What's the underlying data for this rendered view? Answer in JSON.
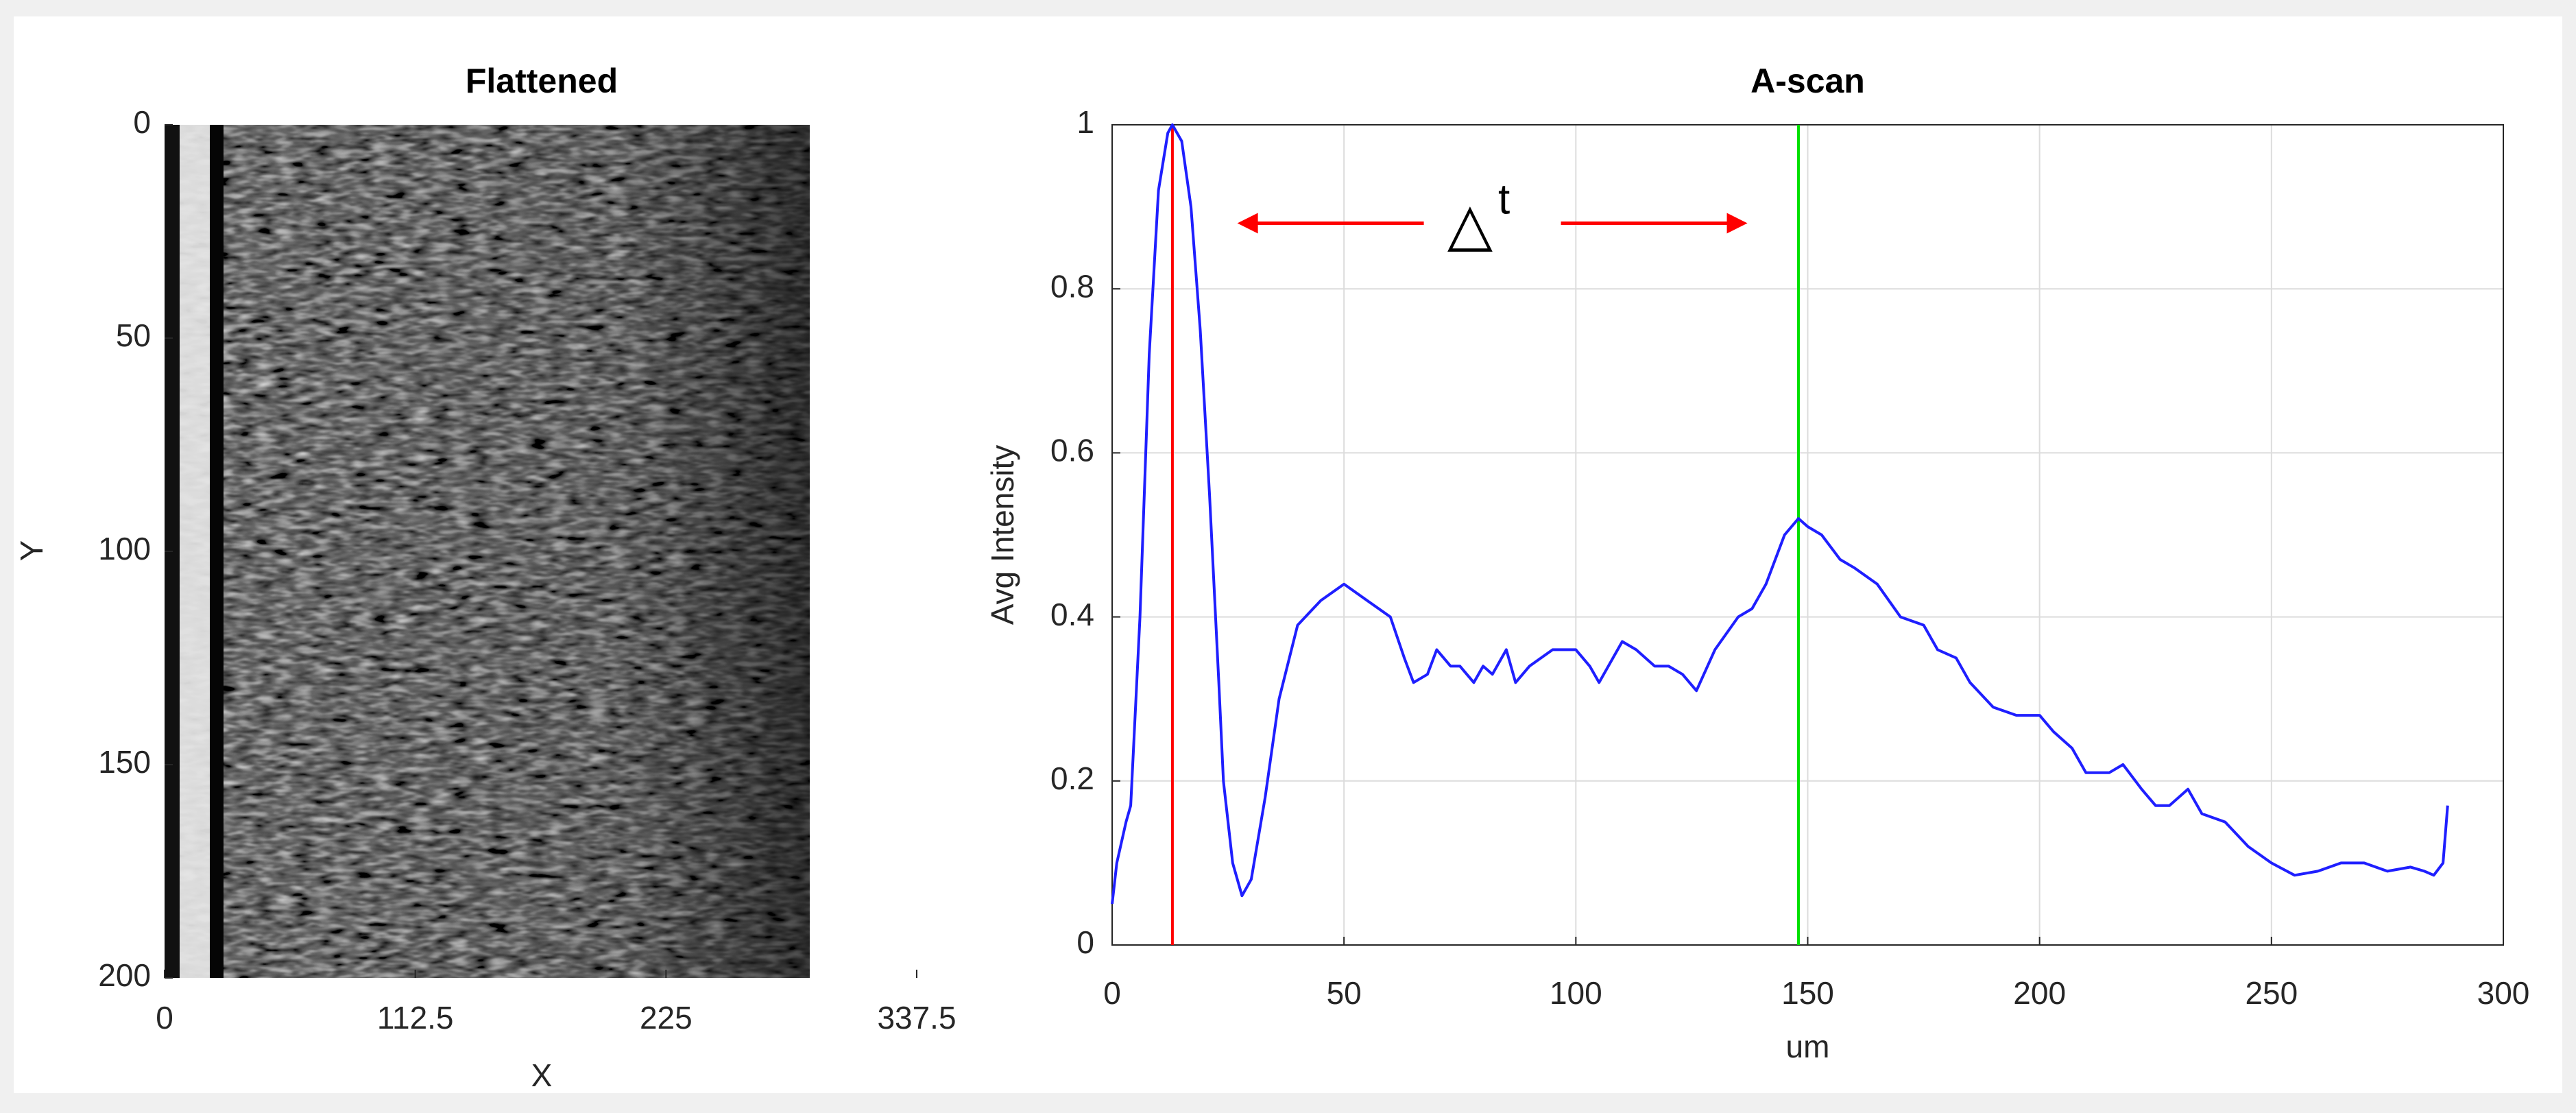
{
  "chart_data": [
    {
      "type": "image",
      "title": "Flattened",
      "xlabel": "X",
      "ylabel": "Y",
      "xlim": [
        0,
        337.5
      ],
      "xticks": [
        0,
        112.5,
        225,
        337.5
      ],
      "ylim": [
        0,
        200
      ],
      "yticks": [
        0,
        50,
        100,
        150,
        200
      ],
      "y_reversed": true
    },
    {
      "type": "line",
      "title": "A-scan",
      "xlabel": "um",
      "ylabel": "Avg Intensity",
      "xlim": [
        0,
        300
      ],
      "xticks": [
        0,
        50,
        100,
        150,
        200,
        250,
        300
      ],
      "ylim": [
        0,
        1
      ],
      "yticks": [
        0,
        0.2,
        0.4,
        0.6,
        0.8,
        1
      ],
      "grid": true,
      "series": [
        {
          "color": "#1f1fff",
          "x": [
            0,
            1,
            3,
            4,
            6,
            8,
            10,
            12,
            13,
            15,
            17,
            19,
            21,
            23,
            24,
            26,
            28,
            30,
            33,
            36,
            40,
            45,
            50,
            55,
            60,
            63,
            65,
            68,
            70,
            73,
            75,
            78,
            80,
            82,
            85,
            87,
            90,
            95,
            100,
            103,
            105,
            110,
            113,
            117,
            120,
            123,
            126,
            130,
            135,
            138,
            141,
            145,
            148,
            150,
            153,
            157,
            160,
            165,
            170,
            175,
            178,
            182,
            185,
            190,
            195,
            200,
            203,
            207,
            210,
            215,
            218,
            222,
            225,
            228,
            232,
            235,
            240,
            245,
            250,
            255,
            260,
            265,
            270,
            275,
            280,
            283,
            285,
            287,
            288
          ],
          "values": [
            0.05,
            0.1,
            0.15,
            0.17,
            0.4,
            0.72,
            0.92,
            0.99,
            1.0,
            0.98,
            0.9,
            0.75,
            0.55,
            0.32,
            0.2,
            0.1,
            0.06,
            0.08,
            0.18,
            0.3,
            0.39,
            0.42,
            0.44,
            0.42,
            0.4,
            0.35,
            0.32,
            0.33,
            0.36,
            0.34,
            0.34,
            0.32,
            0.34,
            0.33,
            0.36,
            0.32,
            0.34,
            0.36,
            0.36,
            0.34,
            0.32,
            0.37,
            0.36,
            0.34,
            0.34,
            0.33,
            0.31,
            0.36,
            0.4,
            0.41,
            0.44,
            0.5,
            0.52,
            0.51,
            0.5,
            0.47,
            0.46,
            0.44,
            0.4,
            0.39,
            0.36,
            0.35,
            0.32,
            0.29,
            0.28,
            0.28,
            0.26,
            0.24,
            0.21,
            0.21,
            0.22,
            0.19,
            0.17,
            0.17,
            0.19,
            0.16,
            0.15,
            0.12,
            0.1,
            0.085,
            0.09,
            0.1,
            0.1,
            0.09,
            0.095,
            0.09,
            0.085,
            0.1,
            0.17
          ]
        }
      ],
      "vlines": [
        {
          "x": 13,
          "color": "#ff0000"
        },
        {
          "x": 148,
          "color": "#00e000"
        }
      ],
      "annotation": {
        "text": "△",
        "sup": "t",
        "arrow_x": [
          27,
          137
        ],
        "arrow_y": 0.88,
        "color": "#ff0000"
      }
    }
  ]
}
